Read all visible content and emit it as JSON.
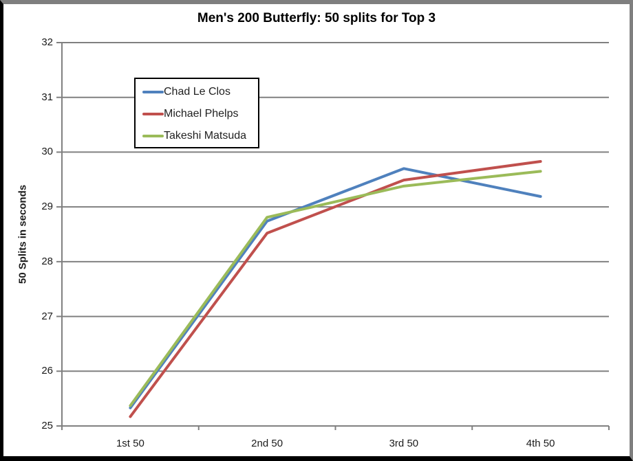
{
  "chart_data": {
    "type": "line",
    "title": "Men's 200 Butterfly: 50 splits for Top 3",
    "xlabel": "",
    "ylabel": "50 Splits in seconds",
    "categories": [
      "1st 50",
      "2nd 50",
      "3rd 50",
      "4th 50"
    ],
    "series": [
      {
        "name": "Chad Le Clos",
        "color": "#4F81BD",
        "values": [
          25.33,
          28.74,
          29.7,
          29.19
        ]
      },
      {
        "name": "Michael Phelps",
        "color": "#C0504D",
        "values": [
          25.17,
          28.52,
          29.49,
          29.83
        ]
      },
      {
        "name": "Takeshi Matsuda",
        "color": "#9BBB59",
        "values": [
          25.37,
          28.81,
          29.38,
          29.65
        ]
      }
    ],
    "ylim": [
      25,
      32
    ],
    "ytick_step": 1,
    "grid": true,
    "grid_color": "#808080",
    "axis_color": "#808080",
    "legend_position": "upper-left-inside",
    "frame_colors": {
      "shadow": "#7f7f7f",
      "border": "#000000"
    }
  }
}
